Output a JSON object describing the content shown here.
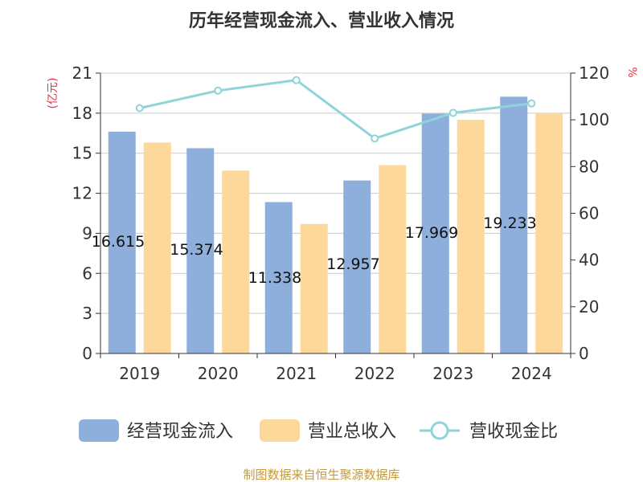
{
  "colors": {
    "cash_inflow": "#8eaedb",
    "revenue": "#fdd89b",
    "ratio": "#8fd4d8",
    "unit": "#e8333c",
    "source": "#c49a3a"
  },
  "chart_data": {
    "type": "bar",
    "title": "历年经营现金流入、营业收入情况",
    "categories": [
      "2019",
      "2020",
      "2021",
      "2022",
      "2023",
      "2024"
    ],
    "series": [
      {
        "name": "经营现金流入",
        "type": "bar",
        "axis": "left",
        "values": [
          16.615,
          15.374,
          11.338,
          12.957,
          17.969,
          19.233
        ]
      },
      {
        "name": "营业总收入",
        "type": "bar",
        "axis": "left",
        "values": [
          15.8,
          13.7,
          9.7,
          14.1,
          17.5,
          18.0
        ]
      },
      {
        "name": "营收现金比",
        "type": "line",
        "axis": "right",
        "values": [
          105,
          112.5,
          117,
          92,
          103,
          107
        ]
      }
    ],
    "data_labels": [
      "16.615",
      "15.374",
      "11.338",
      "12.957",
      "17.969",
      "19.233"
    ],
    "y_left": {
      "label": "(亿元)",
      "ylim": [
        0,
        21
      ],
      "ticks": [
        0,
        3,
        6,
        9,
        12,
        15,
        18,
        21
      ]
    },
    "y_right": {
      "label": "%",
      "ylim": [
        0,
        120
      ],
      "ticks": [
        0,
        20,
        40,
        60,
        80,
        100,
        120
      ]
    },
    "grid": true,
    "legend": "bottom"
  },
  "footer": {
    "source": "制图数据来自恒生聚源数据库"
  }
}
